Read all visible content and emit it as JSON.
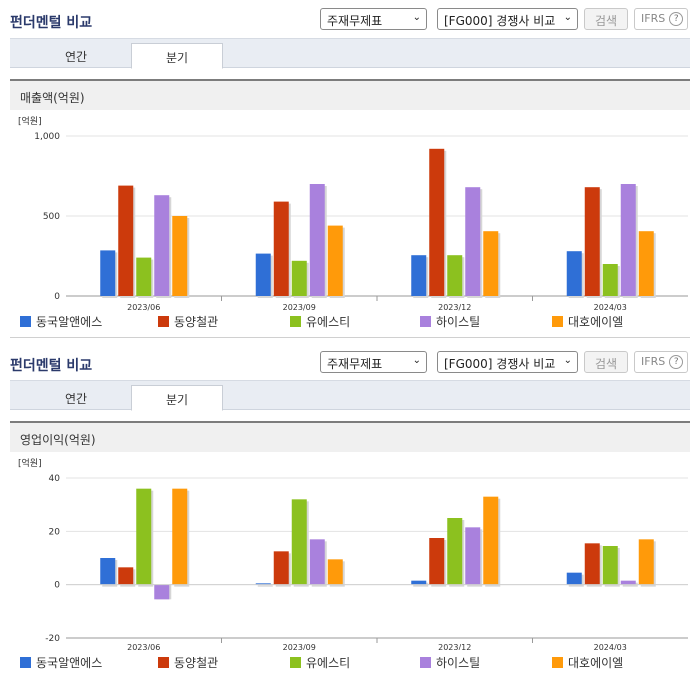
{
  "panels": [
    {
      "title": "펀더멘털 비교",
      "select_statement": "주재무제표",
      "select_compare": "[FG000] 경쟁사 비교",
      "search_label": "검색",
      "ifrs_label": "IFRS",
      "ifrs_help": "?",
      "tabs": [
        {
          "label": "연간"
        },
        {
          "label": "분기"
        }
      ],
      "active_tab": 1,
      "subtitle": "매출액(억원)"
    },
    {
      "title": "펀더멘털 비교",
      "select_statement": "주재무제표",
      "select_compare": "[FG000] 경쟁사 비교",
      "search_label": "검색",
      "ifrs_label": "IFRS",
      "ifrs_help": "?",
      "tabs": [
        {
          "label": "연간"
        },
        {
          "label": "분기"
        }
      ],
      "active_tab": 1,
      "subtitle": "영업이익(억원)"
    }
  ],
  "legend": [
    {
      "name": "동국알앤에스",
      "color": "#2f6fd6"
    },
    {
      "name": "동양철관",
      "color": "#cc3a0c"
    },
    {
      "name": "유에스티",
      "color": "#8cc11f"
    },
    {
      "name": "하이스틸",
      "color": "#a981dd"
    },
    {
      "name": "대호에이엘",
      "color": "#ff9a0a"
    }
  ],
  "chart_data": [
    {
      "type": "bar",
      "title": "매출액(억원)",
      "unit": "[억원]",
      "categories": [
        "2023/06",
        "2023/09",
        "2023/12",
        "2024/03"
      ],
      "yticks": [
        0,
        500,
        1000
      ],
      "ytick_labels": [
        "0",
        "500",
        "1,000"
      ],
      "ylim": [
        0,
        1000
      ],
      "series": [
        {
          "name": "동국알앤에스",
          "values": [
            285,
            265,
            255,
            280
          ]
        },
        {
          "name": "동양철관",
          "values": [
            690,
            590,
            920,
            680
          ]
        },
        {
          "name": "유에스티",
          "values": [
            240,
            220,
            255,
            200
          ]
        },
        {
          "name": "하이스틸",
          "values": [
            630,
            700,
            680,
            700
          ]
        },
        {
          "name": "대호에이엘",
          "values": [
            500,
            440,
            405,
            405
          ]
        }
      ]
    },
    {
      "type": "bar",
      "title": "영업이익(억원)",
      "unit": "[억원]",
      "categories": [
        "2023/06",
        "2023/09",
        "2023/12",
        "2024/03"
      ],
      "yticks": [
        -20,
        0,
        20,
        40
      ],
      "ytick_labels": [
        "-20",
        "0",
        "20",
        "40"
      ],
      "ylim": [
        -20,
        40
      ],
      "series": [
        {
          "name": "동국알앤에스",
          "values": [
            10,
            0.5,
            1.5,
            4.5
          ]
        },
        {
          "name": "동양철관",
          "values": [
            6.5,
            12.5,
            17.5,
            15.5
          ]
        },
        {
          "name": "유에스티",
          "values": [
            36,
            32,
            25,
            14.5
          ]
        },
        {
          "name": "하이스틸",
          "values": [
            -5.5,
            17,
            21.5,
            1.5
          ]
        },
        {
          "name": "대호에이엘",
          "values": [
            36,
            9.5,
            33,
            17
          ]
        }
      ]
    }
  ]
}
